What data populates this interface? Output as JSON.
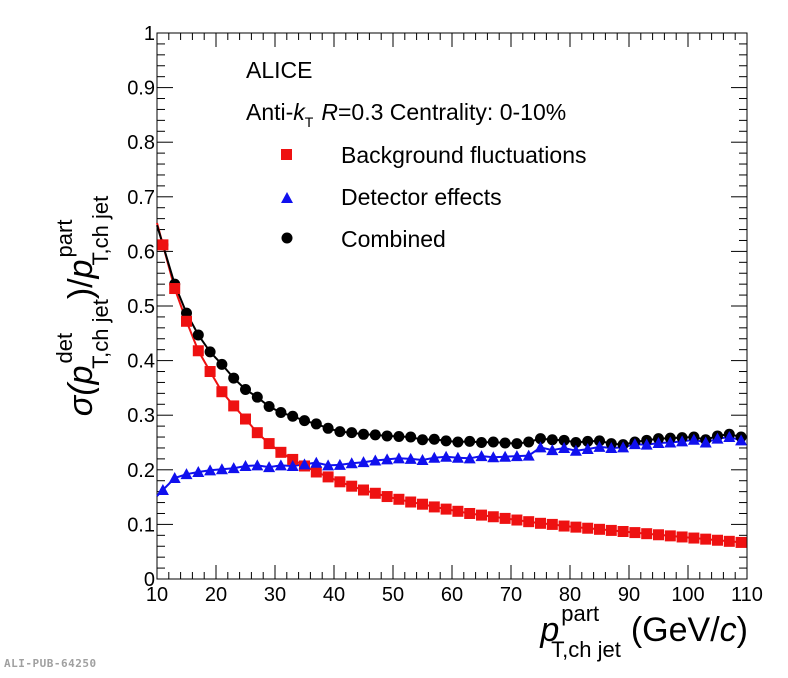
{
  "chart_data": {
    "type": "scatter",
    "title_lines": {
      "experiment": "ALICE",
      "selection_prefix": "Anti-",
      "selection_k": "k",
      "selection_k_sub": "T",
      "selection_R": "R",
      "selection_rest": "=0.3 Centrality: 0-10%"
    },
    "xlabel": {
      "base": "p",
      "sup": "part",
      "sub": "T,ch jet",
      "unit_open": "(GeV/",
      "unit_c": "c",
      "unit_close": ")"
    },
    "ylabel": {
      "sigma": "σ(",
      "p1": "p",
      "p1_sup": "det",
      "p1_sub": "T,ch jet",
      "mid": ")/",
      "p2": "p",
      "p2_sup": "part",
      "p2_sub": "T,ch jet"
    },
    "xlim": [
      10,
      110
    ],
    "ylim": [
      0,
      1
    ],
    "x_ticks": [
      "10",
      "20",
      "30",
      "40",
      "50",
      "60",
      "70",
      "80",
      "90",
      "100",
      "110"
    ],
    "y_ticks": [
      "0",
      "0.1",
      "0.2",
      "0.3",
      "0.4",
      "0.5",
      "0.6",
      "0.7",
      "0.8",
      "0.9",
      "1"
    ],
    "x": [
      11,
      13,
      15,
      17,
      19,
      21,
      23,
      25,
      27,
      29,
      31,
      33,
      35,
      37,
      39,
      41,
      43,
      45,
      47,
      49,
      51,
      53,
      55,
      57,
      59,
      61,
      63,
      65,
      67,
      69,
      71,
      73,
      75,
      77,
      79,
      81,
      83,
      85,
      87,
      89,
      91,
      93,
      95,
      97,
      99,
      101,
      103,
      105,
      107,
      109
    ],
    "series": [
      {
        "name": "Background fluctuations",
        "color": "#ee1111",
        "marker": "square",
        "fit_line": true,
        "values": [
          0.612,
          0.532,
          0.472,
          0.418,
          0.38,
          0.343,
          0.317,
          0.293,
          0.268,
          0.248,
          0.232,
          0.219,
          0.207,
          0.196,
          0.187,
          0.178,
          0.17,
          0.163,
          0.157,
          0.151,
          0.146,
          0.141,
          0.137,
          0.132,
          0.128,
          0.124,
          0.12,
          0.117,
          0.114,
          0.111,
          0.108,
          0.105,
          0.102,
          0.1,
          0.097,
          0.095,
          0.093,
          0.091,
          0.089,
          0.087,
          0.085,
          0.083,
          0.081,
          0.079,
          0.077,
          0.075,
          0.073,
          0.071,
          0.069,
          0.067
        ]
      },
      {
        "name": "Detector effects",
        "color": "#1010ee",
        "marker": "triangle",
        "fit_line": true,
        "values": [
          0.163,
          0.185,
          0.192,
          0.196,
          0.199,
          0.201,
          0.203,
          0.207,
          0.208,
          0.205,
          0.208,
          0.207,
          0.21,
          0.213,
          0.208,
          0.209,
          0.212,
          0.214,
          0.217,
          0.219,
          0.221,
          0.22,
          0.218,
          0.222,
          0.224,
          0.222,
          0.221,
          0.225,
          0.223,
          0.224,
          0.225,
          0.226,
          0.241,
          0.236,
          0.24,
          0.235,
          0.238,
          0.242,
          0.24,
          0.241,
          0.247,
          0.246,
          0.249,
          0.25,
          0.252,
          0.255,
          0.25,
          0.257,
          0.26,
          0.254
        ]
      },
      {
        "name": "Combined",
        "color": "#000000",
        "marker": "circle",
        "fit_line": true,
        "values": [
          0.612,
          0.54,
          0.487,
          0.447,
          0.416,
          0.393,
          0.368,
          0.347,
          0.333,
          0.316,
          0.305,
          0.298,
          0.29,
          0.284,
          0.276,
          0.27,
          0.268,
          0.265,
          0.264,
          0.262,
          0.261,
          0.26,
          0.255,
          0.256,
          0.253,
          0.251,
          0.252,
          0.25,
          0.251,
          0.249,
          0.248,
          0.251,
          0.257,
          0.255,
          0.254,
          0.25,
          0.252,
          0.253,
          0.248,
          0.246,
          0.251,
          0.254,
          0.257,
          0.258,
          0.259,
          0.26,
          0.255,
          0.262,
          0.265,
          0.26
        ]
      }
    ]
  },
  "watermark": "ALI-PUB-64250"
}
